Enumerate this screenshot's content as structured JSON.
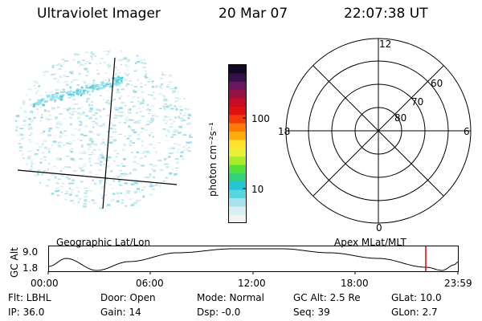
{
  "header": {
    "instrument": "Ultraviolet Imager",
    "date": "20 Mar 07",
    "time": "22:07:38 UT"
  },
  "colorbar": {
    "label": "photon cm⁻²s⁻¹",
    "ticks": [
      "100",
      "10"
    ],
    "colors": [
      "#f2f2f2",
      "#d8eef2",
      "#a9e3ea",
      "#55d6e0",
      "#22c6d8",
      "#33d27a",
      "#55e03a",
      "#a8ec2a",
      "#e6f23a",
      "#ffe02a",
      "#ffac10",
      "#ff7a08",
      "#f23b08",
      "#e01010",
      "#c80a24",
      "#9a1244",
      "#6a1660",
      "#36104a",
      "#140824"
    ]
  },
  "polar": {
    "mlt_labels": {
      "top": "12",
      "left": "18",
      "right": "6",
      "bottom": "0"
    },
    "lat_labels": [
      "60",
      "70",
      "80"
    ]
  },
  "timeline": {
    "left_title": "Geographic Lat/Lon",
    "right_title": "Apex MLat/MLT",
    "ylabel": "GC Alt",
    "y_ticks": [
      "9.0",
      "1.8"
    ],
    "x_ticks": [
      "00:00",
      "06:00",
      "12:00",
      "18:00",
      "23:59"
    ],
    "marker_color": "#e00000"
  },
  "info": {
    "flt": "Flt: LBHL",
    "ip": "IP: 36.0",
    "door": "Door: Open",
    "gain": "Gain: 14",
    "mode": "Mode: Normal",
    "dsp": "Dsp:   -0.0",
    "gcalt": "GC Alt: 2.5 Re",
    "seq": "Seq: 39",
    "glat": "GLat:  10.0",
    "glon": "GLon:   2.7"
  }
}
